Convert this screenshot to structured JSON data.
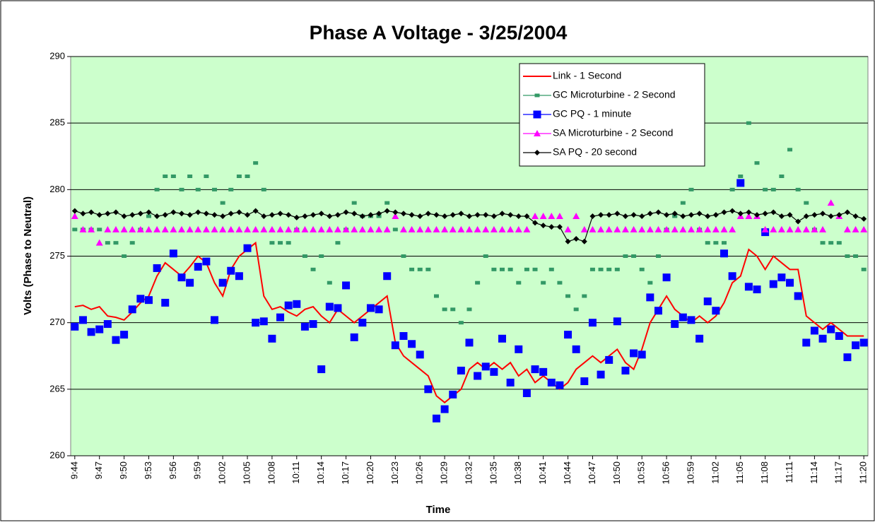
{
  "chart_data": {
    "type": "line",
    "title": "Phase A Voltage - 3/25/2004",
    "x_label": "Time",
    "y_label": "Volts (Phase to Neutral)",
    "categories": [
      "9:44",
      null,
      null,
      "9:47",
      null,
      null,
      "9:50",
      null,
      null,
      "9:53",
      null,
      null,
      "9:56",
      null,
      null,
      "9:59",
      null,
      null,
      "10:02",
      null,
      null,
      "10:05",
      null,
      null,
      "10:08",
      null,
      null,
      "10:11",
      null,
      null,
      "10:14",
      null,
      null,
      "10:17",
      null,
      null,
      "10:20",
      null,
      null,
      "10:23",
      null,
      null,
      "10:26",
      null,
      null,
      "10:29",
      null,
      null,
      "10:32",
      null,
      null,
      "10:35",
      null,
      null,
      "10:38",
      null,
      null,
      "10:41",
      null,
      null,
      "10:44",
      null,
      null,
      "10:47",
      null,
      null,
      "10:50",
      null,
      null,
      "10:53",
      null,
      null,
      "10:56",
      null,
      null,
      "10:59",
      null,
      null,
      "11:02",
      null,
      null,
      "11:05",
      null,
      null,
      "11:08",
      null,
      null,
      "11:11",
      null,
      null,
      "11:14",
      null,
      null,
      "11:17",
      null,
      null,
      "11:20"
    ],
    "series": [
      {
        "name": "Link - 1 Second",
        "color": "#ff0000",
        "line": true,
        "marker": "none",
        "values": [
          271.2,
          271.3,
          271.0,
          271.2,
          270.5,
          270.4,
          270.2,
          270.8,
          271.5,
          272,
          273.5,
          274.5,
          274,
          273.5,
          274.2,
          275,
          274.5,
          273,
          272,
          274,
          275,
          275.5,
          276,
          272,
          271,
          271.2,
          270.8,
          270.5,
          271,
          271.2,
          270.5,
          270,
          271,
          270.5,
          270,
          270.5,
          271,
          271.5,
          272,
          268.5,
          267.5,
          267,
          266.5,
          266,
          264.5,
          264,
          264.5,
          265,
          266.5,
          267,
          266.5,
          267,
          266.5,
          267,
          266,
          266.5,
          265.5,
          266,
          265.5,
          265,
          265.5,
          266.5,
          267,
          267.5,
          267,
          267.5,
          268,
          267,
          266.5,
          268,
          270,
          271,
          272,
          271,
          270.5,
          270,
          270.5,
          270,
          270.5,
          271.5,
          273,
          273.5,
          275.5,
          275,
          274,
          275,
          274.5,
          274,
          274,
          270.5,
          270,
          269.5,
          270,
          269.5,
          269,
          269,
          269
        ]
      },
      {
        "name": "GC Microturbine  - 2 Second",
        "color": "#339966",
        "line": false,
        "marker": "square",
        "values": [
          277,
          277,
          277,
          277,
          276,
          276,
          275,
          276,
          277,
          278,
          280,
          281,
          281,
          280,
          281,
          280,
          281,
          280,
          279,
          280,
          281,
          281,
          282,
          280,
          276,
          276,
          276,
          277,
          275,
          274,
          275,
          273,
          276,
          277,
          279,
          278,
          278,
          278,
          279,
          277,
          275,
          274,
          274,
          274,
          272,
          271,
          271,
          270,
          271,
          273,
          275,
          274,
          274,
          274,
          273,
          274,
          274,
          273,
          274,
          273,
          272,
          271,
          272,
          274,
          274,
          274,
          274,
          275,
          275,
          274,
          273,
          275,
          277,
          278,
          279,
          280,
          277,
          276,
          276,
          276,
          280,
          281,
          285,
          282,
          280,
          280,
          281,
          283,
          280,
          279,
          277,
          276,
          276,
          276,
          275,
          275,
          274
        ]
      },
      {
        "name": "GC PQ - 1 minute",
        "color": "#0000ff",
        "line": false,
        "marker": "bigsquare",
        "values": [
          269.7,
          270.2,
          269.3,
          269.5,
          269.9,
          268.7,
          269.1,
          271,
          271.8,
          271.7,
          274.1,
          271.5,
          275.2,
          273.4,
          273,
          274.2,
          274.6,
          270.2,
          273,
          273.9,
          273.5,
          275.6,
          270,
          270.1,
          268.8,
          270.4,
          271.3,
          271.4,
          269.7,
          269.9,
          266.5,
          271.2,
          271.1,
          272.8,
          268.9,
          270,
          271.1,
          271,
          273.5,
          268.3,
          269,
          268.4,
          267.6,
          265,
          262.8,
          263.5,
          264.6,
          266.4,
          268.5,
          266,
          266.7,
          266.3,
          268.8,
          265.5,
          268,
          264.7,
          266.5,
          266.3,
          265.5,
          265.3,
          269.1,
          268,
          265.6,
          270,
          266.1,
          267.2,
          270.1,
          266.4,
          267.7,
          267.6,
          271.9,
          270.9,
          273.4,
          269.9,
          270.4,
          270.2,
          268.8,
          271.6,
          270.9,
          275.2,
          273.5,
          280.5,
          272.7,
          272.5,
          276.8,
          272.9,
          273.4,
          273,
          272,
          268.5,
          269.4,
          268.8,
          269.5,
          269,
          267.4,
          268.3,
          268.5
        ]
      },
      {
        "name": "SA Microturbine - 2 Second",
        "color": "#ff00ff",
        "line": false,
        "marker": "triangle",
        "values": [
          278,
          277,
          277,
          276,
          277,
          277,
          277,
          277,
          277,
          277,
          277,
          277,
          277,
          277,
          277,
          277,
          277,
          277,
          277,
          277,
          277,
          277,
          277,
          277,
          277,
          277,
          277,
          277,
          277,
          277,
          277,
          277,
          277,
          277,
          277,
          277,
          277,
          277,
          277,
          278,
          277,
          277,
          277,
          277,
          277,
          277,
          277,
          277,
          277,
          277,
          277,
          277,
          277,
          277,
          277,
          277,
          278,
          278,
          278,
          278,
          277,
          278,
          277,
          277,
          277,
          277,
          277,
          277,
          277,
          277,
          277,
          277,
          277,
          277,
          277,
          277,
          277,
          277,
          277,
          277,
          277,
          278,
          278,
          278,
          277,
          277,
          277,
          277,
          277,
          277,
          277,
          277,
          279,
          278,
          277,
          277,
          277
        ]
      },
      {
        "name": "SA PQ - 20 second",
        "color": "#000000",
        "line": true,
        "marker": "diamond",
        "values": [
          278.4,
          278.2,
          278.3,
          278.1,
          278.2,
          278.3,
          278,
          278.1,
          278.2,
          278.3,
          278,
          278.1,
          278.3,
          278.2,
          278.1,
          278.3,
          278.2,
          278.1,
          278,
          278.2,
          278.3,
          278.1,
          278.4,
          278,
          278.1,
          278.2,
          278.1,
          277.9,
          278,
          278.1,
          278.2,
          278,
          278.1,
          278.3,
          278.2,
          278,
          278.1,
          278.2,
          278.4,
          278.3,
          278.2,
          278.1,
          278,
          278.2,
          278.1,
          278,
          278.1,
          278.2,
          278,
          278.1,
          278.1,
          278,
          278.2,
          278.1,
          278,
          278,
          277.5,
          277.3,
          277.2,
          277.2,
          276.1,
          276.3,
          276.1,
          278,
          278.1,
          278.1,
          278.2,
          278,
          278.1,
          278,
          278.2,
          278.3,
          278.1,
          278.2,
          278,
          278.1,
          278.2,
          278,
          278.1,
          278.3,
          278.4,
          278.2,
          278.3,
          278.1,
          278.2,
          278.3,
          278,
          278.1,
          277.6,
          278,
          278.1,
          278.2,
          278,
          278.1,
          278.3,
          278,
          277.8
        ]
      }
    ],
    "ylim": [
      260,
      290
    ],
    "yticks": [
      260,
      265,
      270,
      275,
      280,
      285,
      290
    ],
    "grid": true,
    "legend": "top-right",
    "plot_background": "#ccffcc"
  }
}
